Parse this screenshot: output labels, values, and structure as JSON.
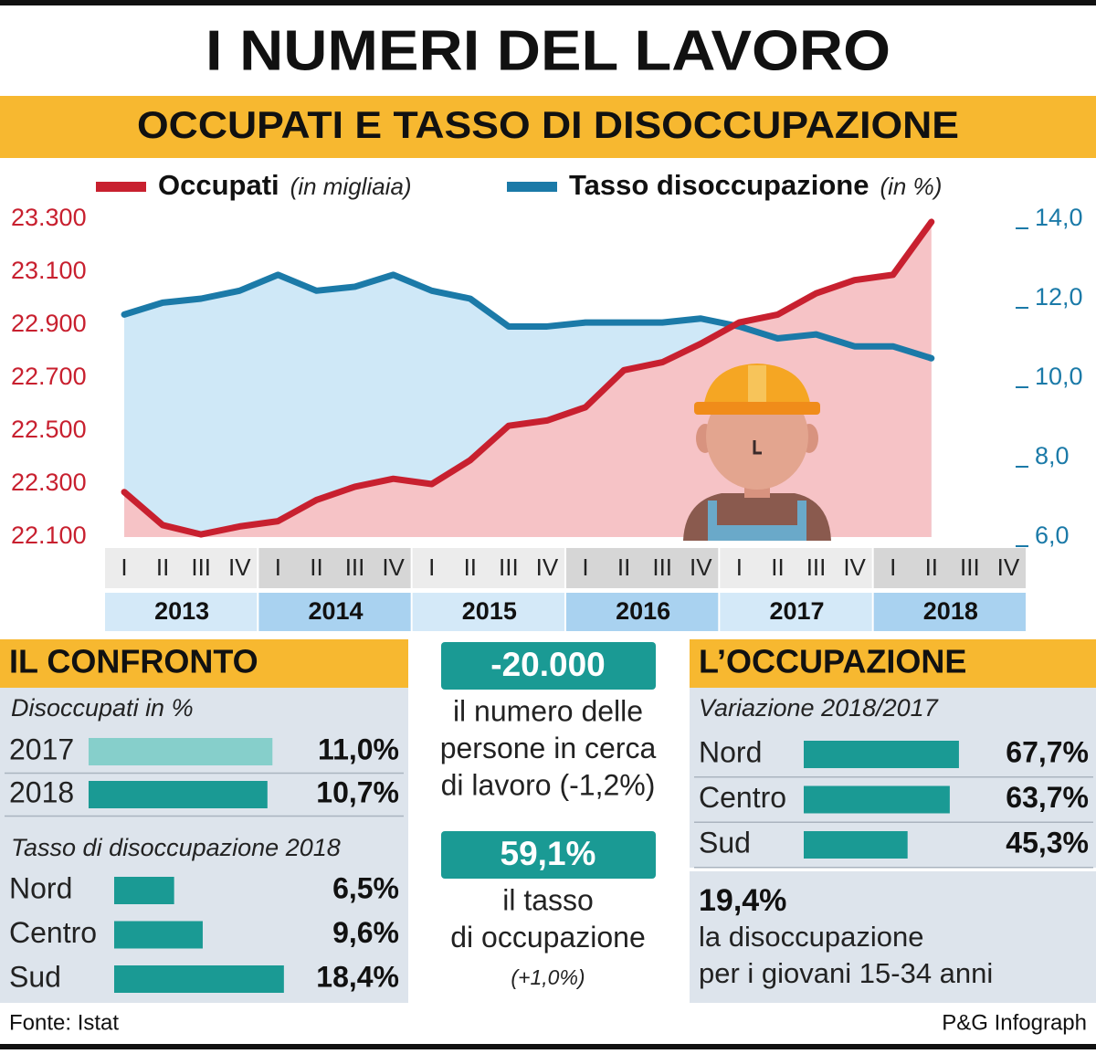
{
  "title": "I NUMERI DEL LAVORO",
  "chart_data": {
    "type": "line",
    "title": "OCCUPATI E TASSO DI DISOCCUPAZIONE",
    "categories": [
      "I",
      "II",
      "III",
      "IV",
      "I",
      "II",
      "III",
      "IV",
      "I",
      "II",
      "III",
      "IV",
      "I",
      "II",
      "III",
      "IV",
      "I",
      "II",
      "III",
      "IV",
      "I",
      "II",
      "III",
      "IV"
    ],
    "years": [
      "2013",
      "2014",
      "2015",
      "2016",
      "2017",
      "2018"
    ],
    "area": true,
    "series": [
      {
        "name": "Occupati",
        "unit": "(in migliaia)",
        "color": "#c8202f",
        "area_color": "#f6c3c6",
        "axis": "y",
        "values": [
          22270,
          22145,
          22110,
          22140,
          22160,
          22240,
          22290,
          22320,
          22300,
          22390,
          22520,
          22540,
          22590,
          22730,
          22760,
          22830,
          22910,
          22940,
          23020,
          23070,
          23090,
          23290,
          null,
          null
        ]
      },
      {
        "name": "Tasso disoccupazione",
        "unit": "(in %)",
        "color": "#1b7aa8",
        "area_color": "#cfe8f7",
        "axis": "y2",
        "values": [
          11.6,
          11.9,
          12.0,
          12.2,
          12.6,
          12.2,
          12.3,
          12.6,
          12.2,
          12.0,
          11.3,
          11.3,
          11.4,
          11.4,
          11.4,
          11.5,
          11.3,
          11.0,
          11.1,
          10.8,
          10.8,
          10.5,
          null,
          null
        ]
      }
    ],
    "ylim": [
      22100,
      23300
    ],
    "yticks": [
      {
        "value": 22100,
        "label": "22.100"
      },
      {
        "value": 22300,
        "label": "22.300"
      },
      {
        "value": 22500,
        "label": "22.500"
      },
      {
        "value": 22700,
        "label": "22.700"
      },
      {
        "value": 22900,
        "label": "22.900"
      },
      {
        "value": 23100,
        "label": "23.100"
      },
      {
        "value": 23300,
        "label": "23.300"
      }
    ],
    "y2lim": [
      6,
      14
    ],
    "y2ticks": [
      {
        "value": 6,
        "label": "6,0"
      },
      {
        "value": 8,
        "label": "8,0"
      },
      {
        "value": 10,
        "label": "10,0"
      },
      {
        "value": 12,
        "label": "12,0"
      },
      {
        "value": 14,
        "label": "14,0"
      }
    ],
    "grid": false
  },
  "confronto": {
    "title": "IL CONFRONTO",
    "groups": [
      {
        "title": "Disoccupati in %",
        "rows": [
          {
            "label": "2017",
            "value": 11.0,
            "value_label": "11,0%",
            "color": "#86cfcb"
          },
          {
            "label": "2018",
            "value": 10.7,
            "value_label": "10,7%",
            "color": "#1a9a94"
          }
        ]
      },
      {
        "title": "Tasso di disoccupazione 2018",
        "rows": [
          {
            "label": "Nord",
            "value": 6.5,
            "value_label": "6,5%",
            "color": "#1a9a94"
          },
          {
            "label": "Centro",
            "value": 9.6,
            "value_label": "9,6%",
            "color": "#1a9a94"
          },
          {
            "label": "Sud",
            "value": 18.4,
            "value_label": "18,4%",
            "color": "#1a9a94"
          }
        ]
      }
    ]
  },
  "highlights": [
    {
      "value": "-20.000",
      "lines": [
        "il numero delle",
        "persone in cerca",
        "di lavoro (-1,2%)"
      ]
    },
    {
      "value": "59,1%",
      "lines": [
        "il tasso",
        "di occupazione"
      ],
      "note": "(+1,0%)"
    }
  ],
  "occupazione": {
    "title": "L’OCCUPAZIONE",
    "subtitle": "Variazione 2018/2017",
    "rows": [
      {
        "label": "Nord",
        "value": 67.7,
        "value_label": "67,7%",
        "color": "#1a9a94"
      },
      {
        "label": "Centro",
        "value": 63.7,
        "value_label": "63,7%",
        "color": "#1a9a94"
      },
      {
        "label": "Sud",
        "value": 45.3,
        "value_label": "45,3%",
        "color": "#1a9a94"
      }
    ],
    "youth": {
      "value": "19,4%",
      "lines": [
        "la disoccupazione",
        "per i giovani 15-34 anni"
      ]
    }
  },
  "footer": {
    "source": "Fonte: Istat",
    "credit": "P&G Infograph"
  }
}
